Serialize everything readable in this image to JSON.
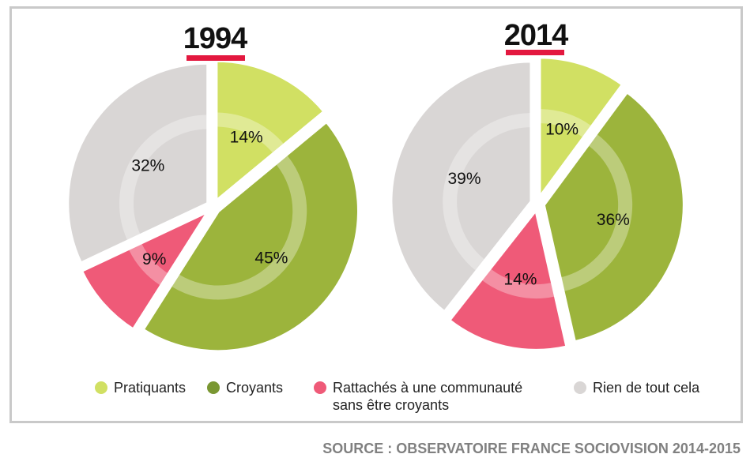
{
  "chart_data": [
    {
      "type": "pie",
      "title": "1994",
      "categories": [
        "Pratiquants",
        "Croyants",
        "Rattachés à une communauté sans être croyants",
        "Rien de tout cela"
      ],
      "values": [
        14,
        45,
        9,
        32
      ],
      "labels": [
        "14%",
        "45%",
        "9%",
        "32%"
      ]
    },
    {
      "type": "pie",
      "title": "2014",
      "categories": [
        "Pratiquants",
        "Croyants",
        "Rattachés à une communauté sans être croyants",
        "Rien de tout cela"
      ],
      "values": [
        10,
        36,
        14,
        39
      ],
      "labels": [
        "10%",
        "36%",
        "14%",
        "39%"
      ]
    }
  ],
  "colors": {
    "pratiquants": "#d1e063",
    "croyants": "#9cb43c",
    "rattaches": "#ef5a78",
    "rien": "#d9d6d5",
    "year_underline": "#e3183f"
  },
  "legend": [
    {
      "label": "Pratiquants",
      "color": "#d1e063"
    },
    {
      "label": "Croyants",
      "color": "#7a9732"
    },
    {
      "label": "Rattachés à une communauté\nsans être croyants",
      "color": "#ef5a78"
    },
    {
      "label": "Rien de tout cela",
      "color": "#d9d6d5"
    }
  ],
  "source": "SOURCE : OBSERVATOIRE FRANCE SOCIOVISION 2014-2015"
}
